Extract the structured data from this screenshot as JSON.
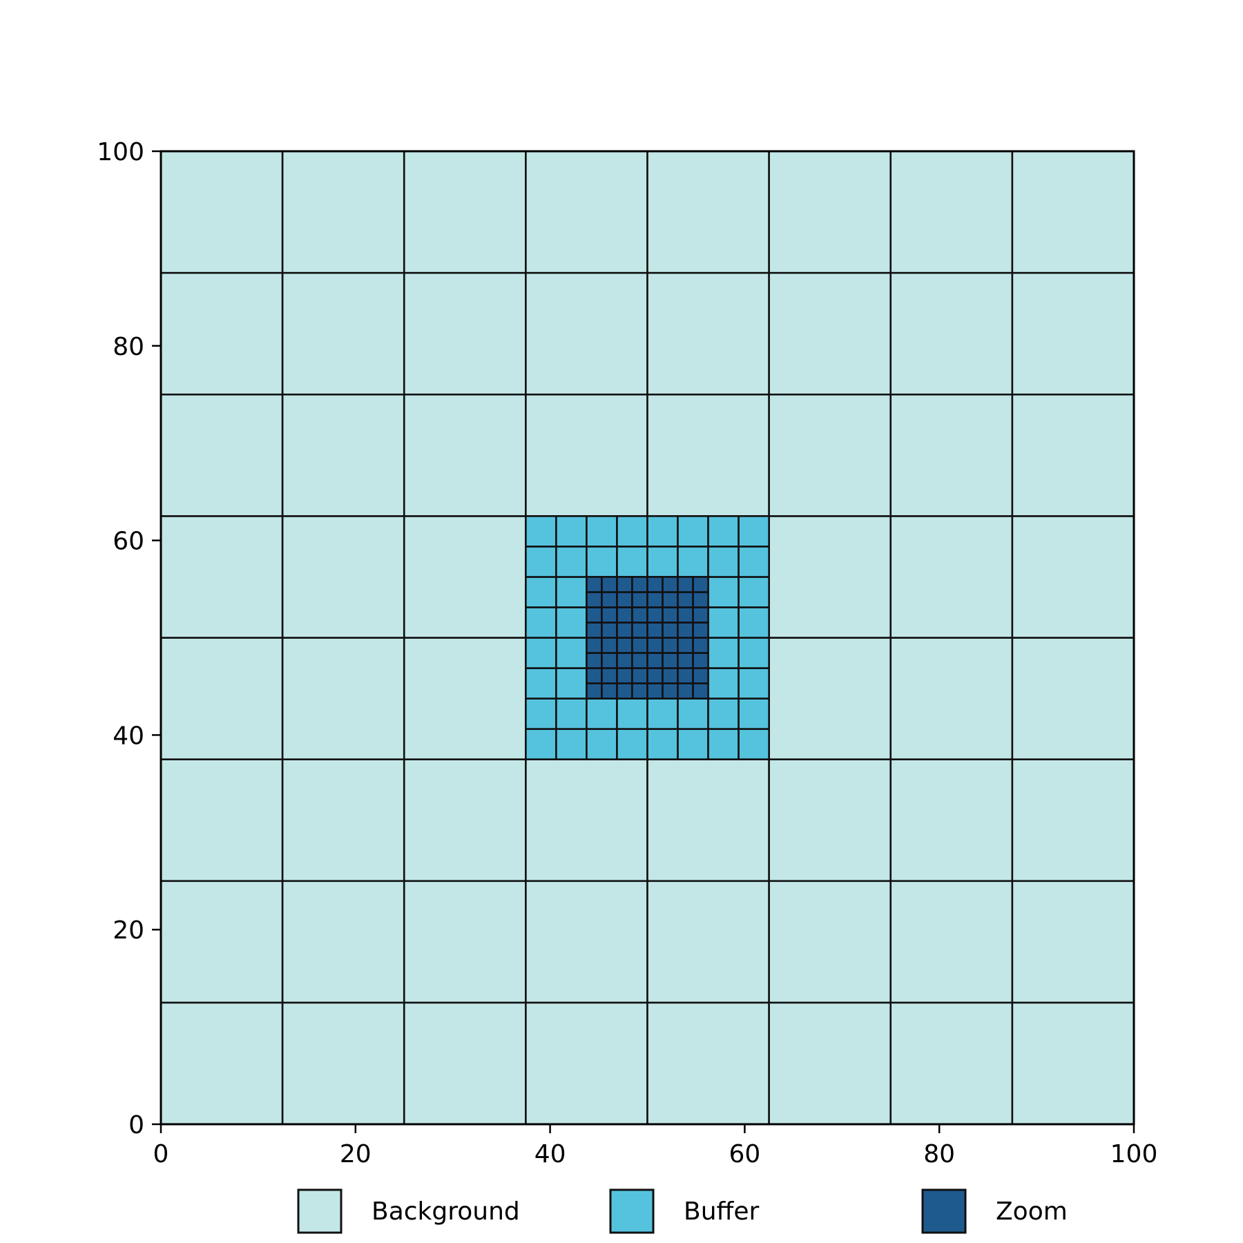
{
  "chart_data": {
    "type": "heatmap",
    "title": "",
    "xlabel": "",
    "ylabel": "",
    "xlim": [
      0,
      100
    ],
    "ylim": [
      0,
      100
    ],
    "xticks": [
      "0",
      "20",
      "40",
      "60",
      "80",
      "100"
    ],
    "yticks": [
      "0",
      "20",
      "40",
      "60",
      "80",
      "100"
    ],
    "grid": false,
    "legend_placement": "bottom-center",
    "series": [
      {
        "name": "Background",
        "color": "#c3e7e6",
        "extent": [
          0,
          100,
          0,
          100
        ],
        "cells": [
          8,
          8
        ]
      },
      {
        "name": "Buffer",
        "color": "#55c3de",
        "extent": [
          37.5,
          62.5,
          37.5,
          62.5
        ],
        "cells": [
          8,
          8
        ]
      },
      {
        "name": "Zoom",
        "color": "#1f5a8f",
        "extent": [
          43.75,
          56.25,
          43.75,
          56.25
        ],
        "cells": [
          8,
          8
        ]
      }
    ]
  }
}
